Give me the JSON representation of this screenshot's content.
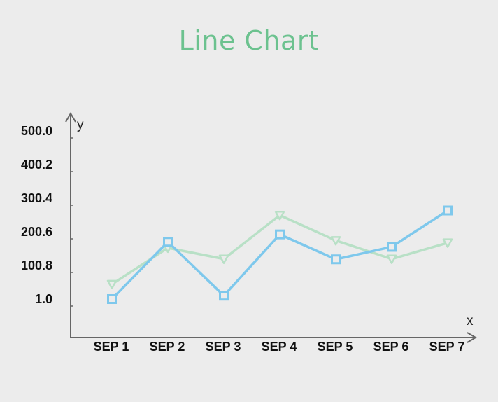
{
  "chart_data": {
    "type": "line",
    "title": "Line Chart",
    "xlabel": "x",
    "ylabel": "y",
    "categories": [
      "SEP 1",
      "SEP 2",
      "SEP 3",
      "SEP 4",
      "SEP 5",
      "SEP 6",
      "SEP 7"
    ],
    "yticks": [
      "1.0",
      "100.8",
      "200.6",
      "300.4",
      "400.2",
      "500.0"
    ],
    "ylim": [
      1.0,
      500.0
    ],
    "grid": false,
    "series": [
      {
        "color": "#7ec8ec",
        "marker": "square",
        "values": [
          1,
          171,
          11,
          193,
          119,
          156,
          264
        ]
      },
      {
        "color": "#b8e0c6",
        "marker": "triangle-down",
        "values": [
          45,
          153,
          120,
          250,
          175,
          120,
          168
        ]
      }
    ]
  }
}
